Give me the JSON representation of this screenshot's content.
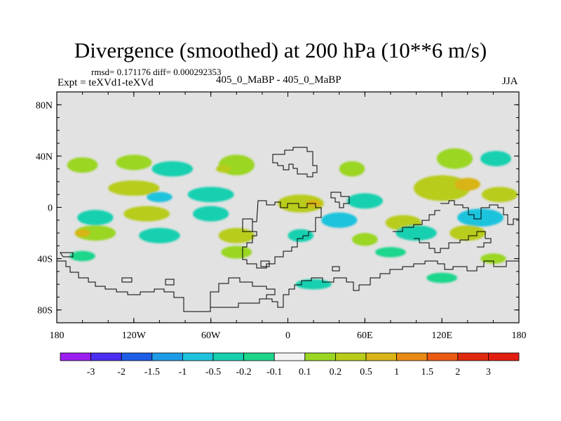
{
  "header": {
    "title": "Divergence (smoothed) at 200 hPa (10**6 m/s)",
    "stats": "rmsd= 0.171176 diff= 0.000292353",
    "experiment": "Expt = teXVd1-teXVd",
    "difference": "405_0_MaBP - 405_0_MaBP",
    "season": "JJA"
  },
  "chart_data": {
    "type": "heatmap",
    "title": "Divergence (smoothed) at 200 hPa (10**6 m/s)",
    "xlabel": "",
    "ylabel": "",
    "xlim": [
      -180,
      180
    ],
    "ylim": [
      -90,
      90
    ],
    "x_ticks": [
      {
        "value": -180,
        "label": "180"
      },
      {
        "value": -120,
        "label": "120W"
      },
      {
        "value": -60,
        "label": "60W"
      },
      {
        "value": 0,
        "label": "0"
      },
      {
        "value": 60,
        "label": "60E"
      },
      {
        "value": 120,
        "label": "120E"
      },
      {
        "value": 180,
        "label": "180"
      }
    ],
    "y_ticks": [
      {
        "value": 80,
        "label": "80N"
      },
      {
        "value": 40,
        "label": "40N"
      },
      {
        "value": 0,
        "label": "0"
      },
      {
        "value": -40,
        "label": "40S"
      },
      {
        "value": -80,
        "label": "80S"
      }
    ],
    "colorbar": {
      "labels": [
        "-3",
        "-2",
        "-1.5",
        "-1",
        "-0.5",
        "-0.2",
        "-0.1",
        "0.1",
        "0.2",
        "0.5",
        "1",
        "1.5",
        "2",
        "3"
      ],
      "colors": [
        "#9b1ff0",
        "#4a2ff0",
        "#1e5ee6",
        "#1e9be6",
        "#1ec3dc",
        "#16d0b0",
        "#1ed68c",
        "#f2f2f2",
        "#9ad624",
        "#b8cc1a",
        "#d8b418",
        "#e88a14",
        "#ea5a12",
        "#e02a10",
        "#e21e10"
      ]
    },
    "field_background": "#e2e2e2",
    "field_blobs": [
      {
        "lon": -160,
        "lat": 33,
        "rlon": 12,
        "rlat": 6,
        "cls": 8
      },
      {
        "lon": -120,
        "lat": 35,
        "rlon": 14,
        "rlat": 6,
        "cls": 8
      },
      {
        "lon": -90,
        "lat": 30,
        "rlon": 16,
        "rlat": 6,
        "cls": 5
      },
      {
        "lon": -40,
        "lat": 33,
        "rlon": 14,
        "rlat": 8,
        "cls": 8
      },
      {
        "lon": -50,
        "lat": 30,
        "rlon": 6,
        "rlat": 3,
        "cls": 9
      },
      {
        "lon": 50,
        "lat": 30,
        "rlon": 10,
        "rlat": 6,
        "cls": 8
      },
      {
        "lon": 130,
        "lat": 38,
        "rlon": 14,
        "rlat": 8,
        "cls": 8
      },
      {
        "lon": 162,
        "lat": 38,
        "rlon": 12,
        "rlat": 6,
        "cls": 5
      },
      {
        "lon": -120,
        "lat": 15,
        "rlon": 20,
        "rlat": 6,
        "cls": 9
      },
      {
        "lon": -60,
        "lat": 10,
        "rlon": 18,
        "rlat": 6,
        "cls": 5
      },
      {
        "lon": -100,
        "lat": 8,
        "rlon": 10,
        "rlat": 4,
        "cls": 4
      },
      {
        "lon": 10,
        "lat": 3,
        "rlon": 18,
        "rlat": 7,
        "cls": 9
      },
      {
        "lon": 20,
        "lat": 3,
        "rlon": 6,
        "rlat": 3,
        "cls": 10
      },
      {
        "lon": 60,
        "lat": 5,
        "rlon": 14,
        "rlat": 6,
        "cls": 5
      },
      {
        "lon": 120,
        "lat": 15,
        "rlon": 22,
        "rlat": 10,
        "cls": 9
      },
      {
        "lon": 140,
        "lat": 18,
        "rlon": 10,
        "rlat": 5,
        "cls": 10
      },
      {
        "lon": 165,
        "lat": 10,
        "rlon": 14,
        "rlat": 6,
        "cls": 9
      },
      {
        "lon": -150,
        "lat": -8,
        "rlon": 14,
        "rlat": 6,
        "cls": 5
      },
      {
        "lon": -110,
        "lat": -5,
        "rlon": 18,
        "rlat": 6,
        "cls": 9
      },
      {
        "lon": -60,
        "lat": -5,
        "rlon": 14,
        "rlat": 6,
        "cls": 5
      },
      {
        "lon": 40,
        "lat": -10,
        "rlon": 14,
        "rlat": 6,
        "cls": 4
      },
      {
        "lon": 90,
        "lat": -12,
        "rlon": 14,
        "rlat": 6,
        "cls": 9
      },
      {
        "lon": 150,
        "lat": -8,
        "rlon": 18,
        "rlat": 7,
        "cls": 4
      },
      {
        "lon": -150,
        "lat": -20,
        "rlon": 16,
        "rlat": 6,
        "cls": 8
      },
      {
        "lon": -160,
        "lat": -20,
        "rlon": 6,
        "rlat": 3,
        "cls": 10
      },
      {
        "lon": -100,
        "lat": -22,
        "rlon": 16,
        "rlat": 6,
        "cls": 5
      },
      {
        "lon": -40,
        "lat": -22,
        "rlon": 14,
        "rlat": 6,
        "cls": 9
      },
      {
        "lon": 10,
        "lat": -22,
        "rlon": 10,
        "rlat": 5,
        "cls": 5
      },
      {
        "lon": 60,
        "lat": -25,
        "rlon": 10,
        "rlat": 5,
        "cls": 8
      },
      {
        "lon": 100,
        "lat": -20,
        "rlon": 16,
        "rlat": 6,
        "cls": 5
      },
      {
        "lon": 140,
        "lat": -20,
        "rlon": 14,
        "rlat": 6,
        "cls": 9
      },
      {
        "lon": -160,
        "lat": -38,
        "rlon": 10,
        "rlat": 4,
        "cls": 6
      },
      {
        "lon": -40,
        "lat": -35,
        "rlon": 12,
        "rlat": 5,
        "cls": 8
      },
      {
        "lon": 80,
        "lat": -35,
        "rlon": 12,
        "rlat": 4,
        "cls": 6
      },
      {
        "lon": 160,
        "lat": -40,
        "rlon": 10,
        "rlat": 4,
        "cls": 8
      },
      {
        "lon": 20,
        "lat": -60,
        "rlon": 14,
        "rlat": 4,
        "cls": 5
      },
      {
        "lon": 120,
        "lat": -55,
        "rlon": 12,
        "rlat": 4,
        "cls": 6
      }
    ]
  }
}
